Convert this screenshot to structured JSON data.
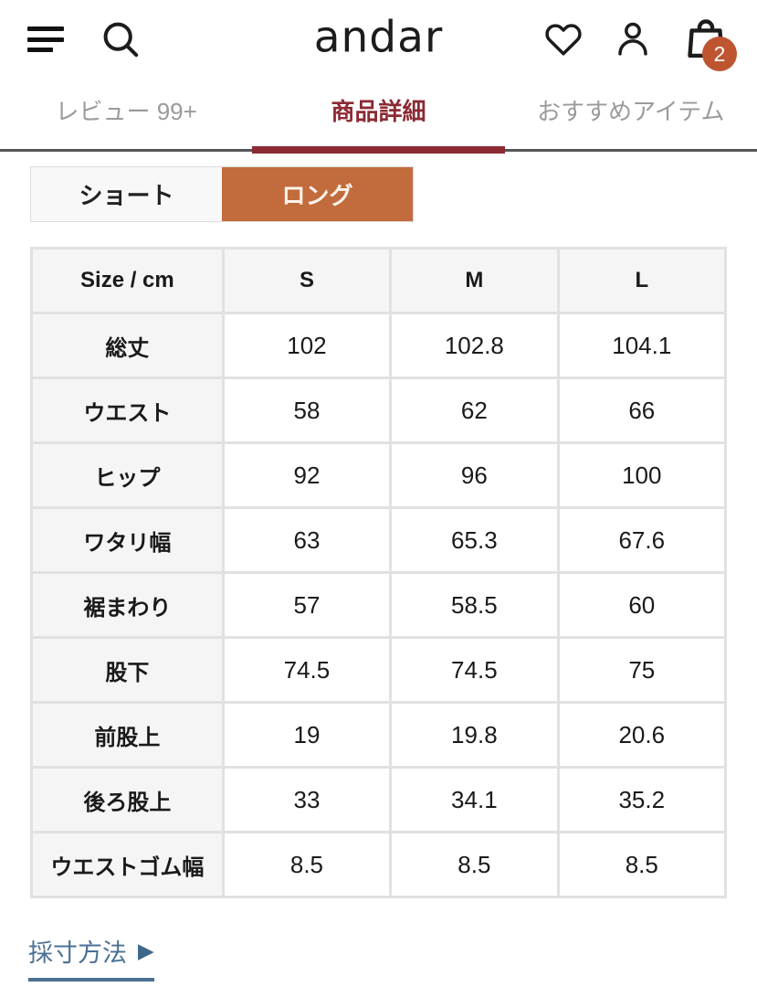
{
  "header": {
    "logo": "andar",
    "cart_badge": "2"
  },
  "tabs": [
    {
      "label": "レビュー 99+"
    },
    {
      "label": "商品詳細"
    },
    {
      "label": "おすすめアイテム"
    }
  ],
  "length_toggle": [
    {
      "label": "ショート"
    },
    {
      "label": "ロング"
    }
  ],
  "size_table": {
    "header": [
      "Size / cm",
      "S",
      "M",
      "L"
    ],
    "rows": [
      {
        "label": "総丈",
        "values": [
          "102",
          "102.8",
          "104.1"
        ]
      },
      {
        "label": "ウエスト",
        "values": [
          "58",
          "62",
          "66"
        ]
      },
      {
        "label": "ヒップ",
        "values": [
          "92",
          "96",
          "100"
        ]
      },
      {
        "label": "ワタリ幅",
        "values": [
          "63",
          "65.3",
          "67.6"
        ]
      },
      {
        "label": "裾まわり",
        "values": [
          "57",
          "58.5",
          "60"
        ]
      },
      {
        "label": "股下",
        "values": [
          "74.5",
          "74.5",
          "75"
        ]
      },
      {
        "label": "前股上",
        "values": [
          "19",
          "19.8",
          "20.6"
        ]
      },
      {
        "label": "後ろ股上",
        "values": [
          "33",
          "34.1",
          "35.2"
        ]
      },
      {
        "label": "ウエストゴム幅",
        "values": [
          "8.5",
          "8.5",
          "8.5"
        ]
      }
    ]
  },
  "measurement_link": {
    "label": "採寸方法",
    "arrow": "▶"
  },
  "colors": {
    "tab_active_red": "#8b2a33",
    "toggle_orange": "#c26b3c",
    "badge_orange": "#bf5430",
    "link_blue": "#4a7193"
  }
}
